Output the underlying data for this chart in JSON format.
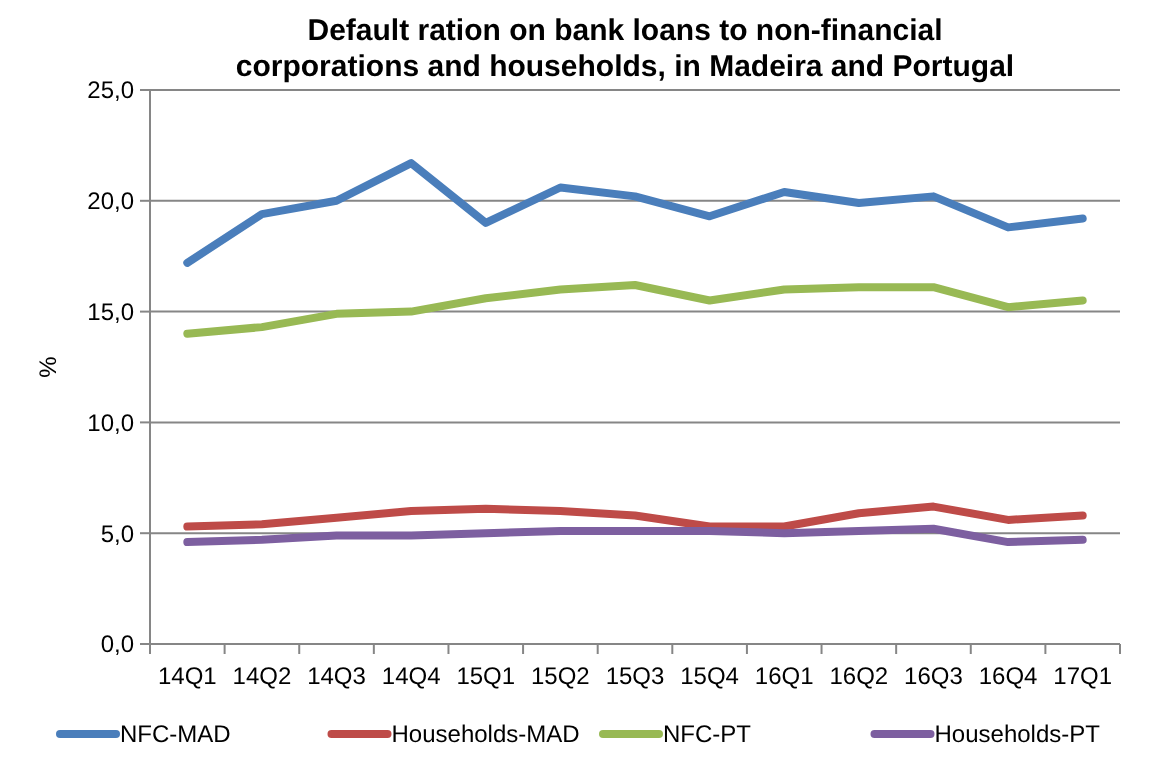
{
  "chart_data": {
    "type": "line",
    "title": "Default ration on bank loans to non-financial corporations and households, in Madeira and Portugal",
    "ylabel": "%",
    "categories": [
      "14Q1",
      "14Q2",
      "14Q3",
      "14Q4",
      "15Q1",
      "15Q2",
      "15Q3",
      "15Q4",
      "16Q1",
      "16Q2",
      "16Q3",
      "16Q4",
      "17Q1"
    ],
    "series": [
      {
        "name": "NFC-MAD",
        "color": "#4a7ebb",
        "values": [
          17.2,
          19.4,
          20.0,
          21.7,
          19.0,
          20.6,
          20.2,
          19.3,
          20.4,
          19.9,
          20.2,
          18.8,
          19.2
        ]
      },
      {
        "name": "Households-MAD",
        "color": "#be4b48",
        "values": [
          5.3,
          5.4,
          5.7,
          6.0,
          6.1,
          6.0,
          5.8,
          5.3,
          5.3,
          5.9,
          6.2,
          5.6,
          5.8
        ]
      },
      {
        "name": "NFC-PT",
        "color": "#98b954",
        "values": [
          14.0,
          14.3,
          14.9,
          15.0,
          15.6,
          16.0,
          16.2,
          15.5,
          16.0,
          16.1,
          16.1,
          15.2,
          15.5
        ]
      },
      {
        "name": "Households-PT",
        "color": "#7d5fa0",
        "values": [
          4.6,
          4.7,
          4.9,
          4.9,
          5.0,
          5.1,
          5.1,
          5.1,
          5.0,
          5.1,
          5.2,
          4.6,
          4.7
        ]
      }
    ],
    "ylim": [
      0,
      25
    ],
    "yticks": [
      {
        "value": 0,
        "label": "0,0"
      },
      {
        "value": 5,
        "label": "5,0"
      },
      {
        "value": 10,
        "label": "10,0"
      },
      {
        "value": 15,
        "label": "15,0"
      },
      {
        "value": 20,
        "label": "20,0"
      },
      {
        "value": 25,
        "label": "25,0"
      }
    ],
    "grid": "y",
    "legend": "bottom",
    "marker": "none",
    "line_style": "solid"
  }
}
